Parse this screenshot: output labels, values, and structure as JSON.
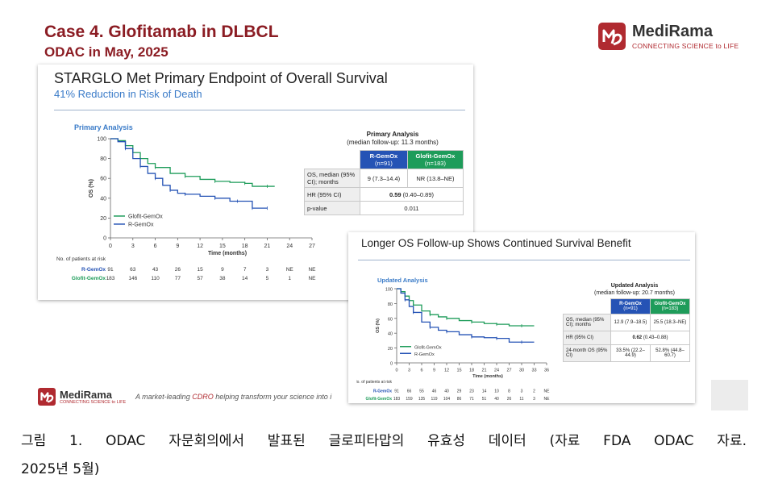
{
  "header": {
    "case_title": "Case 4. Glofitamab in DLBCL",
    "case_sub": "ODAC in May, 2025",
    "logo_name": "MediRama",
    "logo_tagline": "CONNECTING SCIENCE to LIFE"
  },
  "slide1": {
    "title": "STARGLO Met Primary Endpoint of Overall Survival",
    "subtitle": "41% Reduction in Risk of Death",
    "chart_label": "Primary Analysis",
    "table_title": "Primary Analysis",
    "table_subtitle": "(median follow-up: 11.3 months)",
    "col1": "R-GemOx",
    "col1_n": "(n=91)",
    "col2": "Glofit-GemOx",
    "col2_n": "(n=183)",
    "row1_label": "OS, median (95% CI); months",
    "row1_c1": "9 (7.3–14.4)",
    "row1_c2": "NR (13.8–NE)",
    "row2_label": "HR (95% CI)",
    "row2_val_bold": "0.59",
    "row2_val": "(0.40–0.89)",
    "row3_label": "p-value",
    "row3_val": "0.011"
  },
  "slide2": {
    "title": "Longer OS Follow-up Shows Continued Survival Benefit",
    "chart_label": "Updated Analysis",
    "table_title": "Updated Analysis",
    "table_subtitle": "(median follow-up: 20.7 months)",
    "col1": "R-GemOx",
    "col1_n": "(n=91)",
    "col2": "Glofit-GemOx",
    "col2_n": "(n=183)",
    "row1_label": "OS, median (95% CI); months",
    "row1_c1": "12.9 (7.9–18.5)",
    "row1_c2": "25.5 (18.3–NE)",
    "row2_label": "HR (95% CI)",
    "row2_val_bold": "0.62",
    "row2_val": "(0.43–0.88)",
    "row3_label": "24-month OS (95% CI)",
    "row3_c1": "33.5% (22.2–44.9)",
    "row3_c2": "52.8% (44.8–60.7)"
  },
  "footer": {
    "logo_name": "MediRama",
    "logo_tagline": "CONNECTING SCIENCE to LIFE",
    "text_before": "A market-leading ",
    "text_cdro": "CDRO",
    "text_after": " helping transform your science into i"
  },
  "caption": {
    "line1": "그림 1. ODAC 자문회의에서 발표된 글로피타맙의 유효성 데이터 (자료 FDA ODAC 자료.",
    "line2": "2025년 5월)"
  },
  "chart_data": [
    {
      "type": "line",
      "title": "Primary Analysis",
      "xlabel": "Time (months)",
      "ylabel": "OS (%)",
      "x_ticks": [
        0,
        3,
        6,
        9,
        12,
        15,
        18,
        21,
        24,
        27
      ],
      "y_ticks": [
        0,
        20,
        40,
        60,
        80,
        100
      ],
      "xlim": [
        0,
        27
      ],
      "ylim": [
        0,
        100
      ],
      "legend_position": "bottom-left",
      "series": [
        {
          "name": "Glofit-GemOx",
          "color": "#1e9c5a",
          "x": [
            0,
            1,
            2,
            3,
            4,
            5,
            6,
            8,
            10,
            12,
            14,
            16,
            18,
            19,
            21,
            22
          ],
          "y": [
            100,
            98,
            93,
            86,
            80,
            75,
            71,
            65,
            62,
            59,
            57,
            56,
            55,
            52,
            52,
            52
          ]
        },
        {
          "name": "R-GemOx",
          "color": "#2553b5",
          "x": [
            0,
            1,
            2,
            3,
            4,
            5,
            6,
            7,
            8,
            9,
            10,
            12,
            14,
            16,
            17,
            18,
            19,
            20,
            21
          ],
          "y": [
            100,
            97,
            90,
            80,
            72,
            65,
            60,
            53,
            48,
            45,
            44,
            42,
            40,
            37,
            37,
            37,
            30,
            30,
            30
          ]
        }
      ],
      "risk_table": {
        "header": "No. of patients at risk",
        "rows": [
          {
            "name": "R-GemOx",
            "values": [
              "91",
              "63",
              "43",
              "26",
              "15",
              "9",
              "7",
              "3",
              "NE",
              "NE"
            ]
          },
          {
            "name": "Glofit-GemOx",
            "values": [
              "183",
              "146",
              "110",
              "77",
              "57",
              "38",
              "14",
              "5",
              "1",
              "NE"
            ]
          }
        ]
      }
    },
    {
      "type": "line",
      "title": "Updated Analysis",
      "xlabel": "Time (months)",
      "ylabel": "OS (%)",
      "x_ticks": [
        0,
        3,
        6,
        9,
        12,
        15,
        18,
        21,
        24,
        27,
        30,
        33,
        36
      ],
      "y_ticks": [
        0,
        20,
        40,
        60,
        80,
        100
      ],
      "xlim": [
        0,
        36
      ],
      "ylim": [
        0,
        100
      ],
      "legend_position": "bottom-left",
      "series": [
        {
          "name": "Glofit-GemOx",
          "color": "#1e9c5a",
          "x": [
            0,
            1,
            2,
            3,
            4,
            6,
            8,
            10,
            12,
            15,
            18,
            21,
            24,
            27,
            30,
            33
          ],
          "y": [
            100,
            96,
            90,
            84,
            78,
            70,
            65,
            62,
            60,
            57,
            55,
            53,
            52,
            50,
            50,
            50
          ]
        },
        {
          "name": "R-GemOx",
          "color": "#2553b5",
          "x": [
            0,
            1,
            2,
            3,
            4,
            6,
            8,
            10,
            12,
            15,
            18,
            21,
            24,
            27,
            30,
            33
          ],
          "y": [
            100,
            94,
            85,
            76,
            68,
            55,
            48,
            44,
            42,
            38,
            35,
            34,
            33,
            28,
            28,
            28
          ]
        }
      ],
      "risk_table": {
        "header": "No. of patients at risk",
        "rows": [
          {
            "name": "R-GemOx",
            "values": [
              "91",
              "66",
              "55",
              "46",
              "40",
              "29",
              "23",
              "14",
              "10",
              "8",
              "3",
              "2",
              "NE"
            ]
          },
          {
            "name": "Glofit-GemOx",
            "values": [
              "183",
              "159",
              "135",
              "119",
              "104",
              "86",
              "71",
              "51",
              "40",
              "26",
              "11",
              "3",
              "NE"
            ]
          }
        ]
      }
    }
  ]
}
